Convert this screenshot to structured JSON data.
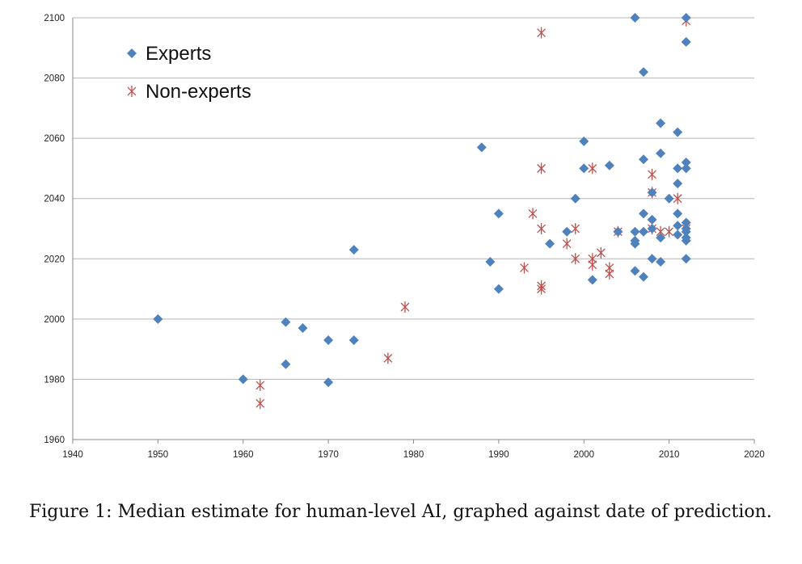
{
  "chart_data": {
    "type": "scatter",
    "xlim": [
      1940,
      2020
    ],
    "ylim": [
      1960,
      2100
    ],
    "x_ticks": [
      "1940",
      "1950",
      "1960",
      "1970",
      "1980",
      "1990",
      "2000",
      "2010",
      "2020"
    ],
    "y_ticks": [
      "1960",
      "1980",
      "2000",
      "2020",
      "2040",
      "2060",
      "2080",
      "2100"
    ],
    "grid": "horizontal",
    "legend_position": "top-left",
    "series": [
      {
        "name": "Experts",
        "marker": "diamond",
        "color": "#4F81BD",
        "points": [
          [
            1950,
            2000
          ],
          [
            1960,
            1980
          ],
          [
            1965,
            1999
          ],
          [
            1965,
            1985
          ],
          [
            1967,
            1997
          ],
          [
            1970,
            1993
          ],
          [
            1970,
            1979
          ],
          [
            1973,
            2023
          ],
          [
            1973,
            1993
          ],
          [
            1988,
            2057
          ],
          [
            1989,
            2019
          ],
          [
            1990,
            2035
          ],
          [
            1990,
            2010
          ],
          [
            1996,
            2025
          ],
          [
            1998,
            2029
          ],
          [
            1999,
            2040
          ],
          [
            2000,
            2059
          ],
          [
            2000,
            2050
          ],
          [
            2001,
            2013
          ],
          [
            2003,
            2051
          ],
          [
            2004,
            2029
          ],
          [
            2006,
            2100
          ],
          [
            2006,
            2029
          ],
          [
            2006,
            2026
          ],
          [
            2006,
            2025
          ],
          [
            2006,
            2016
          ],
          [
            2007,
            2082
          ],
          [
            2007,
            2053
          ],
          [
            2007,
            2035
          ],
          [
            2007,
            2029
          ],
          [
            2007,
            2014
          ],
          [
            2008,
            2042
          ],
          [
            2008,
            2033
          ],
          [
            2008,
            2030
          ],
          [
            2008,
            2020
          ],
          [
            2009,
            2065
          ],
          [
            2009,
            2055
          ],
          [
            2009,
            2027
          ],
          [
            2009,
            2019
          ],
          [
            2010,
            2040
          ],
          [
            2011,
            2062
          ],
          [
            2011,
            2050
          ],
          [
            2011,
            2045
          ],
          [
            2011,
            2035
          ],
          [
            2011,
            2031
          ],
          [
            2011,
            2028
          ],
          [
            2012,
            2100
          ],
          [
            2012,
            2092
          ],
          [
            2012,
            2052
          ],
          [
            2012,
            2050
          ],
          [
            2012,
            2032
          ],
          [
            2012,
            2030
          ],
          [
            2012,
            2029
          ],
          [
            2012,
            2027
          ],
          [
            2012,
            2026
          ],
          [
            2012,
            2020
          ]
        ]
      },
      {
        "name": "Non-experts",
        "marker": "asterisk",
        "color": "#C0504D",
        "points": [
          [
            1962,
            1978
          ],
          [
            1962,
            1972
          ],
          [
            1977,
            1987
          ],
          [
            1979,
            2004
          ],
          [
            1993,
            2017
          ],
          [
            1994,
            2035
          ],
          [
            1995,
            2095
          ],
          [
            1995,
            2050
          ],
          [
            1995,
            2030
          ],
          [
            1995,
            2011
          ],
          [
            1995,
            2010
          ],
          [
            1998,
            2025
          ],
          [
            1999,
            2030
          ],
          [
            1999,
            2020
          ],
          [
            2001,
            2050
          ],
          [
            2001,
            2020
          ],
          [
            2001,
            2018
          ],
          [
            2002,
            2022
          ],
          [
            2003,
            2017
          ],
          [
            2003,
            2015
          ],
          [
            2004,
            2029
          ],
          [
            2008,
            2048
          ],
          [
            2008,
            2042
          ],
          [
            2008,
            2030
          ],
          [
            2009,
            2029
          ],
          [
            2010,
            2029
          ],
          [
            2011,
            2040
          ],
          [
            2012,
            2099
          ],
          [
            2012,
            2030
          ]
        ]
      }
    ]
  },
  "caption": "Figure 1: Median estimate for human-level AI, graphed against date of prediction."
}
